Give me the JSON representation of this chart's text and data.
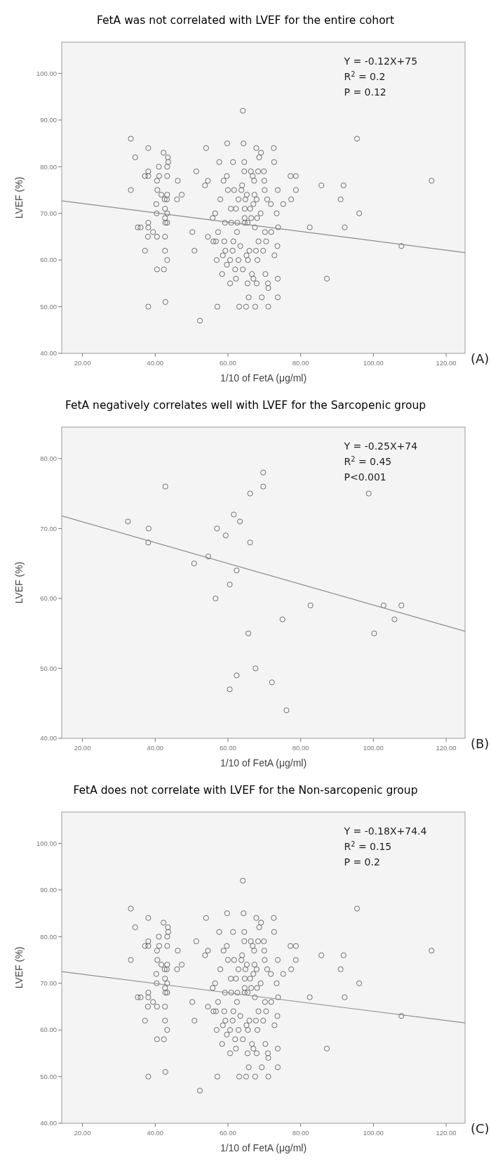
{
  "chart_data": [
    {
      "type": "scatter",
      "title": "FetA was not correlated with LVEF for the entire cohort",
      "xlabel": "1/10 of FetA (μg/ml)",
      "ylabel": "LVEF (%)",
      "xlim": [
        14.3,
        125.2
      ],
      "ylim": [
        40,
        106.7
      ],
      "xticks": [
        {
          "value": 20,
          "label": "20.00"
        },
        {
          "value": 40,
          "label": "40.00"
        },
        {
          "value": 60,
          "label": "60.00"
        },
        {
          "value": 80,
          "label": "80.00"
        },
        {
          "value": 100,
          "label": "100.00"
        },
        {
          "value": 120,
          "label": "120.00"
        }
      ],
      "yticks": [
        {
          "value": 40,
          "label": "40.00"
        },
        {
          "value": 50,
          "label": "50.00"
        },
        {
          "value": 60,
          "label": "60.00"
        },
        {
          "value": 70,
          "label": "70.00"
        },
        {
          "value": 80,
          "label": "80.00"
        },
        {
          "value": 90,
          "label": "90.00"
        },
        {
          "value": 100,
          "label": "100.00"
        }
      ],
      "annotations": [
        "Y = -0.12X+75",
        "R$^{2}$ = 0.2",
        "P = 0.12",
        "(A)"
      ],
      "series": [
        {
          "marker": "circle",
          "color": "#6e6e6e",
          "x": [
            33.3,
            34.5,
            38.1,
            33.3,
            38.1,
            37.2,
            38.1,
            35.2,
            36,
            38.1,
            38.1,
            38,
            37.2,
            38.1,
            39.4,
            40.5,
            40.3,
            40.4,
            40.5,
            40.5,
            41,
            41.1,
            40.6,
            41.7,
            42.3,
            42.4,
            42.7,
            42.7,
            42.8,
            42.6,
            42.7,
            42.7,
            42.8,
            43.3,
            43.5,
            43.6,
            43.3,
            43.3,
            43.2,
            43.3,
            43.3,
            43.3,
            46,
            46.2,
            47.3,
            50.2,
            50.8,
            51.3,
            52.3,
            53.7,
            54,
            54.5,
            54.5,
            55.8,
            56,
            56.5,
            56.7,
            56.9,
            57.1,
            57.3,
            57.6,
            57.9,
            58.4,
            58.6,
            58.8,
            59,
            59.2,
            59.3,
            59.7,
            59.7,
            59.8,
            60,
            60.6,
            60.6,
            60.8,
            60.9,
            61.3,
            61.4,
            61.5,
            61.7,
            62,
            62.2,
            62.2,
            62.5,
            62.6,
            62.9,
            62.9,
            63.1,
            63.4,
            63.7,
            63.9,
            64.1,
            64.3,
            64.1,
            64.5,
            64.5,
            64.6,
            64.6,
            64.6,
            64.8,
            65,
            65.1,
            65.2,
            65.4,
            65.4,
            65.5,
            65.7,
            65.9,
            66.1,
            66.3,
            66.4,
            66.6,
            66.8,
            67,
            67,
            67.2,
            67.3,
            67.4,
            67.5,
            67.7,
            67.8,
            67.9,
            67.9,
            68,
            68.1,
            68.3,
            68.4,
            68.6,
            69,
            69.1,
            69.3,
            69.7,
            69.9,
            70,
            70.1,
            70.2,
            70.3,
            70.5,
            70.8,
            71,
            71.1,
            71.1,
            71.8,
            71.9,
            72.6,
            72.7,
            72.8,
            73.4,
            73.6,
            73.7,
            73.7,
            73.7,
            73.8,
            75.2,
            77.2,
            77.4,
            78.7,
            78.7,
            82.5,
            85.7,
            87.2,
            91,
            91.8,
            92.1,
            95.5,
            96.1,
            107.7,
            116
          ],
          "values": [
            86,
            82,
            84,
            75,
            79,
            78,
            78,
            67,
            67,
            68,
            67,
            65,
            62,
            50,
            66,
            65,
            72,
            70,
            58,
            77,
            80,
            78,
            75,
            74,
            83,
            58,
            62,
            65,
            51,
            73,
            71,
            69,
            68,
            80,
            82,
            81,
            78,
            74,
            73,
            70,
            68,
            60,
            73,
            77,
            74,
            66,
            62,
            79,
            47,
            76,
            84,
            65,
            77,
            69,
            64,
            70,
            64,
            60,
            50,
            66,
            81,
            73,
            57,
            61,
            77,
            64,
            68,
            62,
            59,
            78,
            85,
            75,
            55,
            60,
            71,
            68,
            62,
            81,
            64,
            75,
            58,
            56,
            71,
            66,
            68,
            73,
            60,
            50,
            63,
            75,
            76,
            92,
            85,
            58,
            79,
            81,
            71,
            68,
            69,
            73,
            50,
            61,
            74,
            55,
            68,
            60,
            52,
            62,
            71,
            79,
            69,
            57,
            78,
            56,
            72,
            77,
            74,
            67,
            50,
            62,
            84,
            55,
            73,
            69,
            60,
            79,
            64,
            82,
            70,
            83,
            52,
            62,
            79,
            77,
            75,
            66,
            57,
            64,
            73,
            55,
            54,
            50,
            72,
            66,
            84,
            81,
            61,
            70,
            63,
            52,
            75,
            56,
            67,
            72,
            78,
            73,
            75,
            78,
            67,
            76,
            56,
            73,
            76,
            67,
            86,
            70,
            63,
            77
          ]
        },
        {
          "type": "line",
          "marker": "none",
          "color": "#8c8c8c",
          "x": [
            14.3,
            125.2
          ],
          "values": [
            72.7,
            61.6
          ]
        }
      ]
    },
    {
      "type": "scatter",
      "title": "FetA negatively correlates well with LVEF for the Sarcopenic group",
      "xlabel": "1/10 of FetA (μg/ml)",
      "ylabel": "LVEF (%)",
      "xlim": [
        14.3,
        125.2
      ],
      "ylim": [
        40,
        84.5
      ],
      "xticks": [
        {
          "value": 20,
          "label": "20.00"
        },
        {
          "value": 40,
          "label": "40.00"
        },
        {
          "value": 60,
          "label": "60.00"
        },
        {
          "value": 80,
          "label": "80.00"
        },
        {
          "value": 100,
          "label": "100.00"
        },
        {
          "value": 120,
          "label": "120.00"
        }
      ],
      "yticks": [
        {
          "value": 40,
          "label": "40.00"
        },
        {
          "value": 50,
          "label": "50.00"
        },
        {
          "value": 60,
          "label": "60.00"
        },
        {
          "value": 70,
          "label": "70.00"
        },
        {
          "value": 80,
          "label": "80.00"
        }
      ],
      "annotations": [
        "Y = -0.25X+74",
        "R$^{2}$ = 0.45",
        "P<0.001",
        "(B)"
      ],
      "series": [
        {
          "marker": "circle",
          "color": "#6e6e6e",
          "x": [
            32.5,
            38.2,
            38.1,
            42.8,
            50.7,
            54.6,
            56.6,
            57,
            59.4,
            60.5,
            60.5,
            61.6,
            62.4,
            62.4,
            63.3,
            65.6,
            66.1,
            66.1,
            67.6,
            69.7,
            69.7,
            72.1,
            75,
            76.1,
            82.7,
            98.7,
            100.2,
            102.8,
            105.8,
            107.7
          ],
          "values": [
            71,
            70,
            68,
            76,
            65,
            66,
            60,
            70,
            69,
            62,
            47,
            72,
            64,
            49,
            71,
            55,
            75,
            68,
            50,
            78,
            76,
            48,
            57,
            44,
            59,
            75,
            55,
            59,
            57,
            59
          ]
        },
        {
          "type": "line",
          "marker": "none",
          "color": "#8c8c8c",
          "x": [
            14.3,
            125.2
          ],
          "values": [
            71.8,
            55.3
          ]
        }
      ]
    },
    {
      "type": "scatter",
      "title": "FetA does not correlate with LVEF for the Non-sarcopenic group",
      "xlabel": "1/10 of FetA (μg/ml)",
      "ylabel": "LVEF (%)",
      "xlim": [
        14.3,
        125.2
      ],
      "ylim": [
        40,
        106.7
      ],
      "xticks": [
        {
          "value": 20,
          "label": "20.00"
        },
        {
          "value": 40,
          "label": "40.00"
        },
        {
          "value": 60,
          "label": "60.00"
        },
        {
          "value": 80,
          "label": "80.00"
        },
        {
          "value": 100,
          "label": "100.00"
        },
        {
          "value": 120,
          "label": "120.00"
        }
      ],
      "yticks": [
        {
          "value": 40,
          "label": "40.00"
        },
        {
          "value": 50,
          "label": "50.00"
        },
        {
          "value": 60,
          "label": "60.00"
        },
        {
          "value": 70,
          "label": "70.00"
        },
        {
          "value": 80,
          "label": "80.00"
        },
        {
          "value": 90,
          "label": "90.00"
        },
        {
          "value": 100,
          "label": "100.00"
        }
      ],
      "annotations": [
        "Y = -0.18X+74.4",
        "R$^{2}$ = 0.15",
        "P = 0.2",
        "(C)"
      ],
      "series": [
        {
          "marker": "circle",
          "color": "#6e6e6e",
          "x": [
            33.3,
            34.5,
            38.1,
            33.3,
            38.1,
            37.2,
            38.1,
            35.2,
            36,
            38.1,
            38.1,
            38,
            37.2,
            38.1,
            39.4,
            40.5,
            40.3,
            40.4,
            40.5,
            40.5,
            41,
            41.1,
            40.6,
            41.7,
            42.3,
            42.4,
            42.7,
            42.7,
            42.8,
            42.6,
            42.7,
            42.7,
            42.8,
            43.3,
            43.5,
            43.6,
            43.3,
            43.3,
            43.2,
            43.3,
            43.3,
            43.3,
            46,
            46.2,
            47.3,
            50.2,
            50.8,
            51.3,
            52.3,
            53.7,
            54,
            54.5,
            54.5,
            55.8,
            56,
            56.5,
            56.7,
            56.9,
            57.1,
            57.3,
            57.6,
            57.9,
            58.4,
            58.6,
            58.8,
            59,
            59.2,
            59.3,
            59.7,
            59.7,
            59.8,
            60,
            60.6,
            60.6,
            60.8,
            60.9,
            61.3,
            61.4,
            61.5,
            61.7,
            62,
            62.2,
            62.2,
            62.5,
            62.6,
            62.9,
            62.9,
            63.1,
            63.4,
            63.7,
            63.9,
            64.1,
            64.3,
            64.1,
            64.5,
            64.5,
            64.6,
            64.6,
            64.6,
            64.8,
            65,
            65.1,
            65.2,
            65.4,
            65.4,
            65.5,
            65.7,
            65.9,
            66.1,
            66.3,
            66.4,
            66.6,
            66.8,
            67,
            67,
            67.2,
            67.3,
            67.4,
            67.5,
            67.7,
            67.8,
            67.9,
            67.9,
            68,
            68.1,
            68.3,
            68.4,
            68.6,
            69,
            69.1,
            69.3,
            69.7,
            69.9,
            70,
            70.1,
            70.2,
            70.3,
            70.5,
            70.8,
            71,
            71.1,
            71.1,
            71.8,
            71.9,
            72.6,
            72.7,
            72.8,
            73.4,
            73.6,
            73.7,
            73.7,
            73.7,
            73.8,
            75.2,
            77.2,
            77.4,
            78.7,
            78.7,
            82.5,
            85.7,
            87.2,
            91,
            91.8,
            92.1,
            95.5,
            96.1,
            107.7,
            116
          ],
          "values": [
            86,
            82,
            84,
            75,
            79,
            78,
            78,
            67,
            67,
            68,
            67,
            65,
            62,
            50,
            66,
            65,
            72,
            70,
            58,
            77,
            80,
            78,
            75,
            74,
            83,
            58,
            62,
            65,
            51,
            73,
            71,
            69,
            68,
            80,
            82,
            81,
            78,
            74,
            73,
            70,
            68,
            60,
            73,
            77,
            74,
            66,
            62,
            79,
            47,
            76,
            84,
            65,
            77,
            69,
            64,
            70,
            64,
            60,
            50,
            66,
            81,
            73,
            57,
            61,
            77,
            64,
            68,
            62,
            59,
            78,
            85,
            75,
            55,
            60,
            71,
            68,
            62,
            81,
            64,
            75,
            58,
            56,
            71,
            66,
            68,
            73,
            60,
            50,
            63,
            75,
            76,
            92,
            85,
            58,
            79,
            81,
            71,
            68,
            69,
            73,
            50,
            61,
            74,
            55,
            68,
            60,
            52,
            62,
            71,
            79,
            69,
            57,
            78,
            56,
            72,
            77,
            74,
            67,
            50,
            62,
            84,
            55,
            73,
            69,
            60,
            79,
            64,
            82,
            70,
            83,
            52,
            62,
            79,
            77,
            75,
            66,
            57,
            64,
            73,
            55,
            54,
            50,
            72,
            66,
            84,
            81,
            61,
            70,
            63,
            52,
            75,
            56,
            67,
            72,
            78,
            73,
            75,
            78,
            67,
            76,
            56,
            73,
            76,
            67,
            86,
            70,
            63,
            77
          ]
        },
        {
          "type": "line",
          "marker": "none",
          "color": "#8c8c8c",
          "x": [
            14.3,
            125.2
          ],
          "values": [
            72.5,
            61.5
          ]
        }
      ]
    }
  ]
}
